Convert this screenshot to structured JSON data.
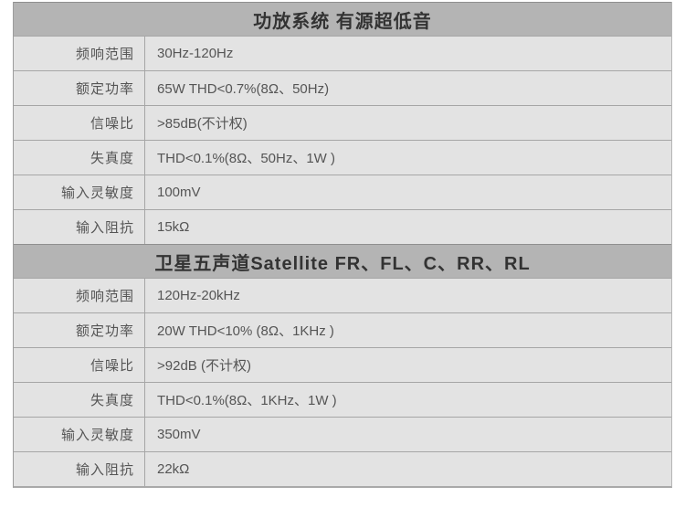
{
  "table": {
    "colors": {
      "page_bg": "#ffffff",
      "header_bg": "#b4b4b4",
      "row_bg": "#e3e3e3",
      "separator": "#a6a6a6",
      "header_text": "#333333",
      "cell_text": "#555555"
    },
    "sections": [
      {
        "title": "功放系统 有源超低音",
        "rows": [
          {
            "label": "频响范围",
            "value": "30Hz-120Hz"
          },
          {
            "label": "额定功率",
            "value": "65W THD<0.7%(8Ω、50Hz)"
          },
          {
            "label": "信噪比",
            "value": ">85dB(不计权)"
          },
          {
            "label": "失真度",
            "value": "THD<0.1%(8Ω、50Hz、1W )"
          },
          {
            "label": "输入灵敏度",
            "value": "100mV"
          },
          {
            "label": "输入阻抗",
            "value": "15kΩ"
          }
        ]
      },
      {
        "title": "卫星五声道Satellite FR、FL、C、RR、RL",
        "rows": [
          {
            "label": "频响范围",
            "value": "120Hz-20kHz"
          },
          {
            "label": "额定功率",
            "value": "20W THD<10% (8Ω、1KHz )"
          },
          {
            "label": "信噪比",
            "value": ">92dB (不计权)"
          },
          {
            "label": "失真度",
            "value": "THD<0.1%(8Ω、1KHz、1W )"
          },
          {
            "label": "输入灵敏度",
            "value": "350mV"
          },
          {
            "label": "输入阻抗",
            "value": "22kΩ"
          }
        ]
      }
    ]
  }
}
